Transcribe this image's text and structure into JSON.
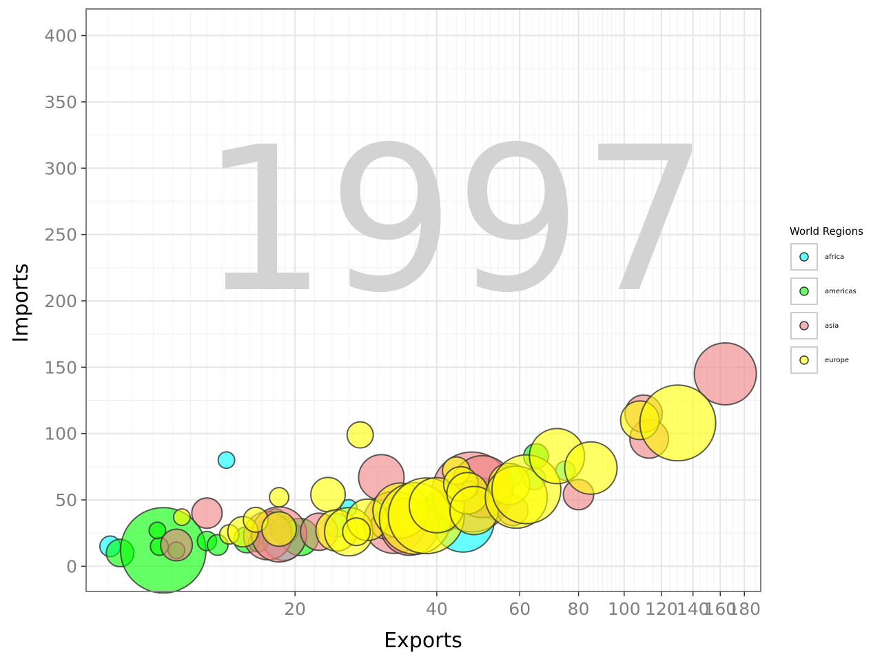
{
  "chart_data": {
    "type": "scatter",
    "title": "",
    "watermark_label": "1997",
    "xlabel": "Exports",
    "ylabel": "Imports",
    "x_scale": "log",
    "xlim": [
      7.2,
      195
    ],
    "ylim": [
      -19,
      420
    ],
    "x_ticks": [
      20,
      40,
      60,
      80,
      100,
      120,
      140,
      160,
      180
    ],
    "x_tick_labels": [
      "20",
      "40",
      "60",
      "80",
      "100",
      "120",
      "140",
      "160",
      "180"
    ],
    "y_ticks": [
      0,
      50,
      100,
      150,
      200,
      250,
      300,
      350,
      400
    ],
    "y_tick_labels": [
      "0",
      "50",
      "100",
      "150",
      "200",
      "250",
      "300",
      "350",
      "400"
    ],
    "grid": true,
    "legend": {
      "title": "World Regions",
      "position": "right",
      "entries": [
        {
          "label": "africa",
          "color": "#00ffff"
        },
        {
          "label": "americas",
          "color": "#00ff00"
        },
        {
          "label": "asia",
          "color": "#f08080"
        },
        {
          "label": "europe",
          "color": "#ffff00"
        }
      ]
    },
    "series": [
      {
        "name": "africa",
        "color": "#00ffff",
        "points": [
          {
            "x": 8.1,
            "y": 15,
            "size": 15
          },
          {
            "x": 14.3,
            "y": 80,
            "size": 12
          },
          {
            "x": 18.9,
            "y": 20,
            "size": 30
          },
          {
            "x": 17.5,
            "y": 30,
            "size": 12
          },
          {
            "x": 26.0,
            "y": 44,
            "size": 12
          },
          {
            "x": 30.5,
            "y": 43,
            "size": 13
          },
          {
            "x": 38.5,
            "y": 42,
            "size": 16
          },
          {
            "x": 42.5,
            "y": 45,
            "size": 20
          },
          {
            "x": 50.5,
            "y": 47,
            "size": 18
          },
          {
            "x": 57.5,
            "y": 68,
            "size": 16
          },
          {
            "x": 64.5,
            "y": 66,
            "size": 16
          },
          {
            "x": 75.0,
            "y": 72,
            "size": 14
          },
          {
            "x": 24.5,
            "y": 31,
            "size": 17
          },
          {
            "x": 45.5,
            "y": 34,
            "size": 45
          }
        ]
      },
      {
        "name": "americas",
        "color": "#00ff00",
        "points": [
          {
            "x": 8.5,
            "y": 10,
            "size": 20
          },
          {
            "x": 10.5,
            "y": 12,
            "size": 62
          },
          {
            "x": 10.3,
            "y": 15,
            "size": 13
          },
          {
            "x": 10.2,
            "y": 27,
            "size": 12
          },
          {
            "x": 13.0,
            "y": 19,
            "size": 14
          },
          {
            "x": 13.7,
            "y": 16,
            "size": 15
          },
          {
            "x": 15.8,
            "y": 20,
            "size": 19
          },
          {
            "x": 16.7,
            "y": 18,
            "size": 14
          },
          {
            "x": 18.2,
            "y": 36,
            "size": 14
          },
          {
            "x": 19.0,
            "y": 27,
            "size": 20
          },
          {
            "x": 20.5,
            "y": 22,
            "size": 27
          },
          {
            "x": 41.0,
            "y": 41,
            "size": 30
          },
          {
            "x": 50.0,
            "y": 54,
            "size": 24
          },
          {
            "x": 52.5,
            "y": 45,
            "size": 18
          },
          {
            "x": 65.0,
            "y": 83,
            "size": 18
          },
          {
            "x": 11.2,
            "y": 12,
            "size": 12
          }
        ]
      },
      {
        "name": "asia",
        "color": "#f08080",
        "points": [
          {
            "x": 11.2,
            "y": 16,
            "size": 23
          },
          {
            "x": 13.0,
            "y": 40,
            "size": 22
          },
          {
            "x": 17.5,
            "y": 23,
            "size": 35
          },
          {
            "x": 18.5,
            "y": 24,
            "size": 40
          },
          {
            "x": 22.5,
            "y": 26,
            "size": 27
          },
          {
            "x": 30.5,
            "y": 67,
            "size": 33
          },
          {
            "x": 32.5,
            "y": 33,
            "size": 45
          },
          {
            "x": 31.0,
            "y": 31,
            "size": 20
          },
          {
            "x": 35.0,
            "y": 30,
            "size": 42
          },
          {
            "x": 47.5,
            "y": 56,
            "size": 58
          },
          {
            "x": 50.0,
            "y": 60,
            "size": 45
          },
          {
            "x": 47.0,
            "y": 58,
            "size": 12
          },
          {
            "x": 58.0,
            "y": 42,
            "size": 22
          },
          {
            "x": 80.0,
            "y": 54,
            "size": 22
          },
          {
            "x": 113.0,
            "y": 96,
            "size": 28
          },
          {
            "x": 110.0,
            "y": 115,
            "size": 27
          },
          {
            "x": 164.0,
            "y": 145,
            "size": 45
          }
        ]
      },
      {
        "name": "europe",
        "color": "#ffff00",
        "points": [
          {
            "x": 11.5,
            "y": 37,
            "size": 12
          },
          {
            "x": 14.5,
            "y": 24,
            "size": 14
          },
          {
            "x": 15.5,
            "y": 26,
            "size": 22
          },
          {
            "x": 16.5,
            "y": 35,
            "size": 18
          },
          {
            "x": 18.5,
            "y": 52,
            "size": 14
          },
          {
            "x": 18.5,
            "y": 28,
            "size": 25
          },
          {
            "x": 23.5,
            "y": 54,
            "size": 25
          },
          {
            "x": 24.5,
            "y": 27,
            "size": 30
          },
          {
            "x": 26.0,
            "y": 26,
            "size": 35
          },
          {
            "x": 27.5,
            "y": 99,
            "size": 19
          },
          {
            "x": 28.5,
            "y": 35,
            "size": 30
          },
          {
            "x": 33.5,
            "y": 42,
            "size": 40
          },
          {
            "x": 36.0,
            "y": 36,
            "size": 52
          },
          {
            "x": 38.0,
            "y": 38,
            "size": 55
          },
          {
            "x": 40.0,
            "y": 46,
            "size": 40
          },
          {
            "x": 44.0,
            "y": 72,
            "size": 20
          },
          {
            "x": 45.0,
            "y": 62,
            "size": 25
          },
          {
            "x": 46.5,
            "y": 55,
            "size": 30
          },
          {
            "x": 48.0,
            "y": 42,
            "size": 35
          },
          {
            "x": 57.0,
            "y": 62,
            "size": 30
          },
          {
            "x": 59.0,
            "y": 52,
            "size": 45
          },
          {
            "x": 62.0,
            "y": 58,
            "size": 50
          },
          {
            "x": 72.0,
            "y": 83,
            "size": 40
          },
          {
            "x": 85.0,
            "y": 74,
            "size": 38
          },
          {
            "x": 108.0,
            "y": 110,
            "size": 28
          },
          {
            "x": 130.0,
            "y": 108,
            "size": 55
          },
          {
            "x": 27.0,
            "y": 26,
            "size": 20
          }
        ]
      }
    ]
  }
}
